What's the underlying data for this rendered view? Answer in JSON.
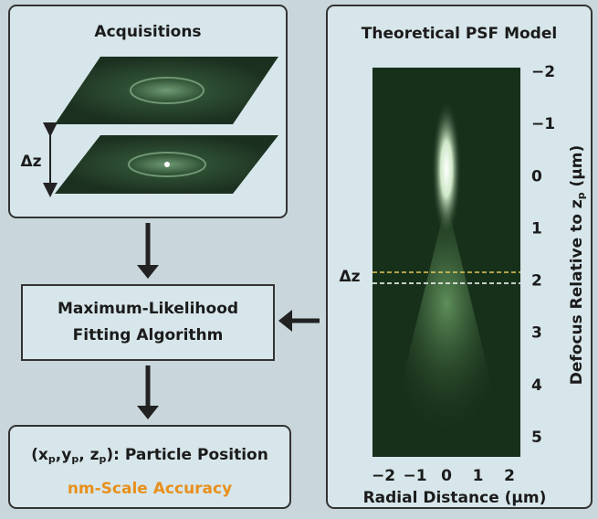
{
  "acquisitions": {
    "title": "Acquisitions",
    "delta_label": "Δz"
  },
  "fitting": {
    "lines": [
      "Maximum-Likelihood",
      "Fitting Algorithm"
    ]
  },
  "result": {
    "position_parts": [
      "(x",
      "p",
      ",y",
      "p",
      ", z",
      "p",
      "): Particle Position"
    ],
    "accuracy": "nm-Scale Accuracy"
  },
  "psf": {
    "title": "Theoretical PSF Model",
    "delta_label": "Δz",
    "y_ticks": [
      "−2",
      "−1",
      "0",
      "1",
      "2",
      "3",
      "4",
      "5"
    ],
    "x_ticks": [
      "−2",
      "−1",
      "0",
      "1",
      "2"
    ],
    "x_label": "Radial Distance (μm)",
    "y_label_parts": [
      "Defocus Relative to z",
      "p",
      " (μm)"
    ]
  }
}
